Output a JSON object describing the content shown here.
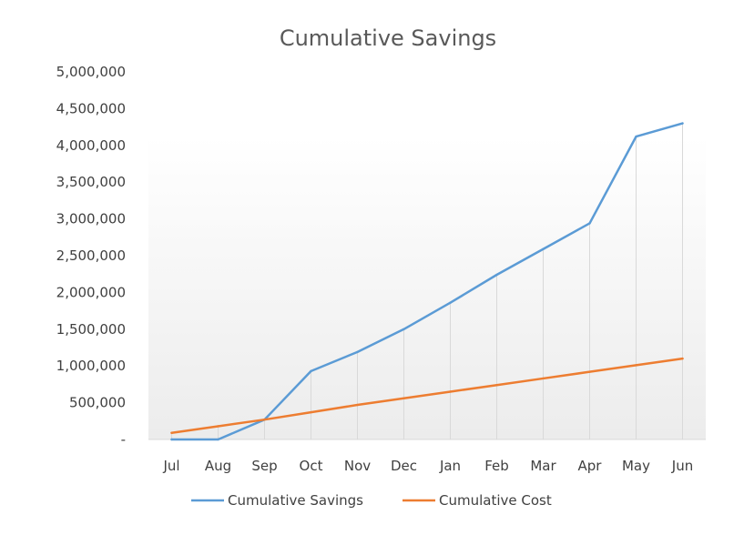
{
  "chart_data": {
    "type": "line",
    "title": "Cumulative Savings",
    "categories": [
      "Jul",
      "Aug",
      "Sep",
      "Oct",
      "Nov",
      "Dec",
      "Jan",
      "Feb",
      "Mar",
      "Apr",
      "May",
      "Jun"
    ],
    "ylim": [
      0,
      5000000
    ],
    "y_ticks": [
      0,
      500000,
      1000000,
      1500000,
      2000000,
      2500000,
      3000000,
      3500000,
      4000000,
      4500000,
      5000000
    ],
    "y_tick_labels": [
      "-",
      "500,000",
      "1,000,000",
      "1,500,000",
      "2,000,000",
      "2,500,000",
      "3,000,000",
      "3,500,000",
      "4,000,000",
      "4,500,000",
      "5,000,000"
    ],
    "grid": "vertical drop lines",
    "legend_position": "bottom",
    "series": [
      {
        "name": "Cumulative Savings",
        "color": "#5B9BD5",
        "values": [
          0,
          0,
          270000,
          930000,
          1190000,
          1500000,
          1860000,
          2240000,
          2590000,
          2940000,
          4120000,
          4300000
        ]
      },
      {
        "name": "Cumulative Cost",
        "color": "#ED7D31",
        "values": [
          90000,
          180000,
          270000,
          370000,
          470000,
          560000,
          650000,
          740000,
          830000,
          920000,
          1010000,
          1100000
        ]
      }
    ]
  }
}
